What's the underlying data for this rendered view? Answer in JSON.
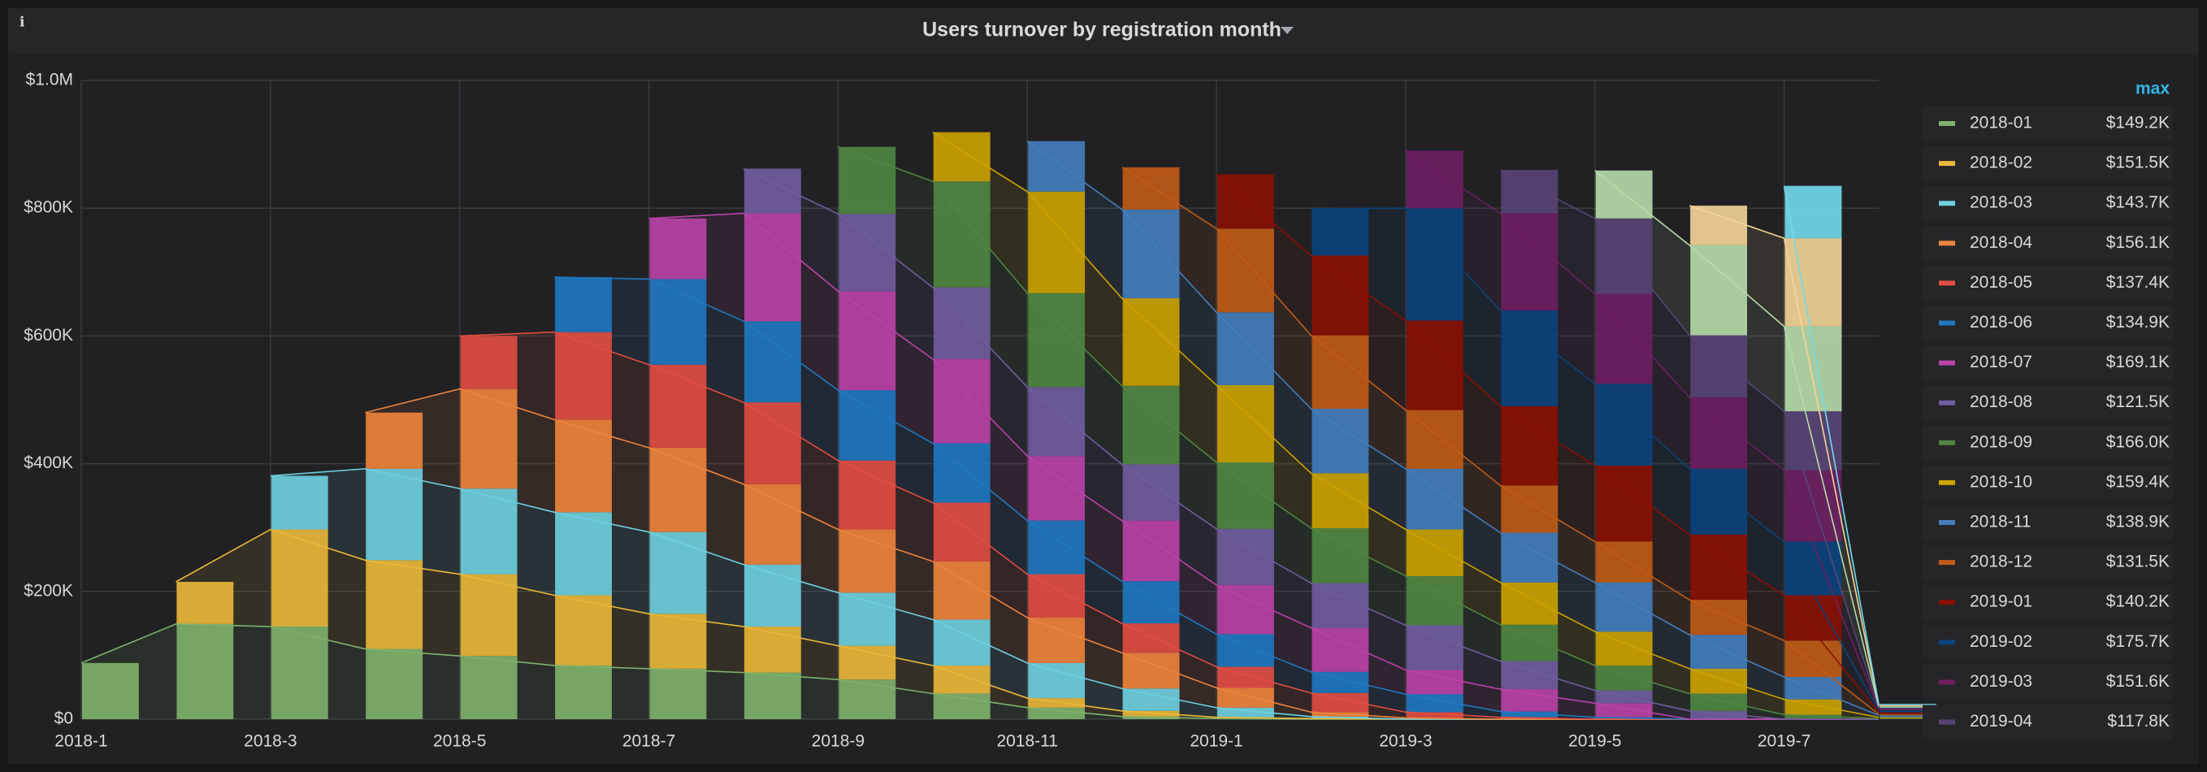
{
  "chart_data": {
    "type": "bar",
    "title": "Users turnover by registration month",
    "legend_header": "max",
    "categories": [
      "2018-1",
      null,
      "2018-3",
      null,
      "2018-5",
      null,
      "2018-7",
      null,
      "2018-9",
      null,
      "2018-11",
      null,
      "2019-1",
      null,
      "2019-3",
      null,
      "2019-5",
      null,
      "2019-7",
      null
    ],
    "ylim": [
      0,
      1000000
    ],
    "yticks": [
      {
        "value": 0,
        "label": "$0"
      },
      {
        "value": 200000,
        "label": "$200K"
      },
      {
        "value": 400000,
        "label": "$400K"
      },
      {
        "value": 600000,
        "label": "$600K"
      },
      {
        "value": 800000,
        "label": "$800K"
      },
      {
        "value": 1000000,
        "label": "$1.0M"
      }
    ],
    "grid": true,
    "stacked": true,
    "series": [
      {
        "name": "2018-01",
        "legend_max": "$149.2K",
        "color": "#7eb26d",
        "values": [
          88000,
          149000,
          145000,
          110000,
          99000,
          84000,
          79000,
          73000,
          62000,
          40000,
          18000,
          4000,
          1000,
          0,
          0,
          0,
          0,
          0,
          0,
          0
        ]
      },
      {
        "name": "2018-02",
        "legend_max": "$151.5K",
        "color": "#eab839",
        "values": [
          null,
          66000,
          152000,
          139000,
          128000,
          110000,
          86000,
          72000,
          53000,
          44000,
          15000,
          9000,
          2000,
          1000,
          0,
          0,
          0,
          0,
          0,
          0
        ]
      },
      {
        "name": "2018-03",
        "legend_max": "$143.7K",
        "color": "#6ed0e0",
        "values": [
          null,
          null,
          84000,
          143000,
          134000,
          130000,
          128000,
          97000,
          83000,
          72000,
          55000,
          35000,
          15000,
          3000,
          0,
          0,
          0,
          0,
          0,
          0
        ]
      },
      {
        "name": "2018-04",
        "legend_max": "$156.1K",
        "color": "#ef843c",
        "values": [
          null,
          null,
          null,
          88000,
          156000,
          145000,
          132000,
          126000,
          99000,
          91000,
          71000,
          56000,
          31000,
          7000,
          2000,
          0,
          0,
          0,
          0,
          0
        ]
      },
      {
        "name": "2018-05",
        "legend_max": "$137.4K",
        "color": "#e24d42",
        "values": [
          null,
          null,
          null,
          null,
          83000,
          137000,
          130000,
          128000,
          108000,
          92000,
          68000,
          46000,
          33000,
          30000,
          9000,
          3000,
          0,
          0,
          0,
          0
        ]
      },
      {
        "name": "2018-06",
        "legend_max": "$134.9K",
        "color": "#1f78c1",
        "values": [
          null,
          null,
          null,
          null,
          null,
          86000,
          134000,
          127000,
          110000,
          93000,
          84000,
          66000,
          51000,
          33000,
          28000,
          9000,
          3000,
          0,
          0,
          0
        ]
      },
      {
        "name": "2018-07",
        "legend_max": "$169.1K",
        "color": "#ba43a9",
        "values": [
          null,
          null,
          null,
          null,
          null,
          null,
          95000,
          169000,
          155000,
          132000,
          101000,
          95000,
          77000,
          69000,
          38000,
          35000,
          22000,
          0,
          0,
          0
        ]
      },
      {
        "name": "2018-08",
        "legend_max": "$121.5K",
        "color": "#705da0",
        "values": [
          null,
          null,
          null,
          null,
          null,
          null,
          null,
          70000,
          121000,
          112000,
          108000,
          88000,
          88000,
          70000,
          70000,
          44000,
          20000,
          13000,
          0,
          0
        ]
      },
      {
        "name": "2018-09",
        "legend_max": "$166.0K",
        "color": "#508642",
        "values": [
          null,
          null,
          null,
          null,
          null,
          null,
          null,
          null,
          105000,
          166000,
          147000,
          123000,
          104000,
          86000,
          77000,
          57000,
          39000,
          27000,
          7000,
          1000
        ]
      },
      {
        "name": "2018-10",
        "legend_max": "$159.4K",
        "color": "#cca300",
        "values": [
          null,
          null,
          null,
          null,
          null,
          null,
          null,
          null,
          null,
          77000,
          159000,
          137000,
          121000,
          86000,
          73000,
          66000,
          53000,
          39000,
          24000,
          2000
        ]
      },
      {
        "name": "2018-11",
        "legend_max": "$138.9K",
        "color": "#447ebc",
        "values": [
          null,
          null,
          null,
          null,
          null,
          null,
          null,
          null,
          null,
          null,
          79000,
          139000,
          114000,
          101000,
          95000,
          78000,
          77000,
          53000,
          35000,
          3000
        ]
      },
      {
        "name": "2018-12",
        "legend_max": "$131.5K",
        "color": "#c15c17",
        "values": [
          null,
          null,
          null,
          null,
          null,
          null,
          null,
          null,
          null,
          null,
          null,
          66000,
          131000,
          115000,
          92000,
          74000,
          64000,
          55000,
          57000,
          2000
        ]
      },
      {
        "name": "2019-01",
        "legend_max": "$140.2K",
        "color": "#890f02",
        "values": [
          null,
          null,
          null,
          null,
          null,
          null,
          null,
          null,
          null,
          null,
          null,
          null,
          85000,
          125000,
          140000,
          124000,
          119000,
          102000,
          71000,
          3000
        ]
      },
      {
        "name": "2019-02",
        "legend_max": "$175.7K",
        "color": "#0a437c",
        "values": [
          null,
          null,
          null,
          null,
          null,
          null,
          null,
          null,
          null,
          null,
          null,
          null,
          null,
          73000,
          176000,
          150000,
          128000,
          103000,
          84000,
          3000
        ]
      },
      {
        "name": "2019-03",
        "legend_max": "$151.6K",
        "color": "#6d1f62",
        "values": [
          null,
          null,
          null,
          null,
          null,
          null,
          null,
          null,
          null,
          null,
          null,
          null,
          null,
          null,
          90000,
          152000,
          141000,
          112000,
          112000,
          2000
        ]
      },
      {
        "name": "2019-04",
        "legend_max": "$117.8K",
        "color": "#584477",
        "values": [
          null,
          null,
          null,
          null,
          null,
          null,
          null,
          null,
          null,
          null,
          null,
          null,
          null,
          null,
          null,
          68000,
          118000,
          97000,
          92000,
          2000
        ]
      },
      {
        "color": "#b7dbab",
        "values": [
          null,
          null,
          null,
          null,
          null,
          null,
          null,
          null,
          null,
          null,
          null,
          null,
          null,
          null,
          null,
          null,
          75000,
          141000,
          133000,
          2000
        ]
      },
      {
        "color": "#f4d598",
        "values": [
          null,
          null,
          null,
          null,
          null,
          null,
          null,
          null,
          null,
          null,
          null,
          null,
          null,
          null,
          null,
          null,
          null,
          62000,
          138000,
          2000
        ]
      },
      {
        "color": "#70dbed",
        "values": [
          null,
          null,
          null,
          null,
          null,
          null,
          null,
          null,
          null,
          null,
          null,
          null,
          null,
          null,
          null,
          null,
          null,
          null,
          82000,
          2000
        ]
      }
    ]
  }
}
